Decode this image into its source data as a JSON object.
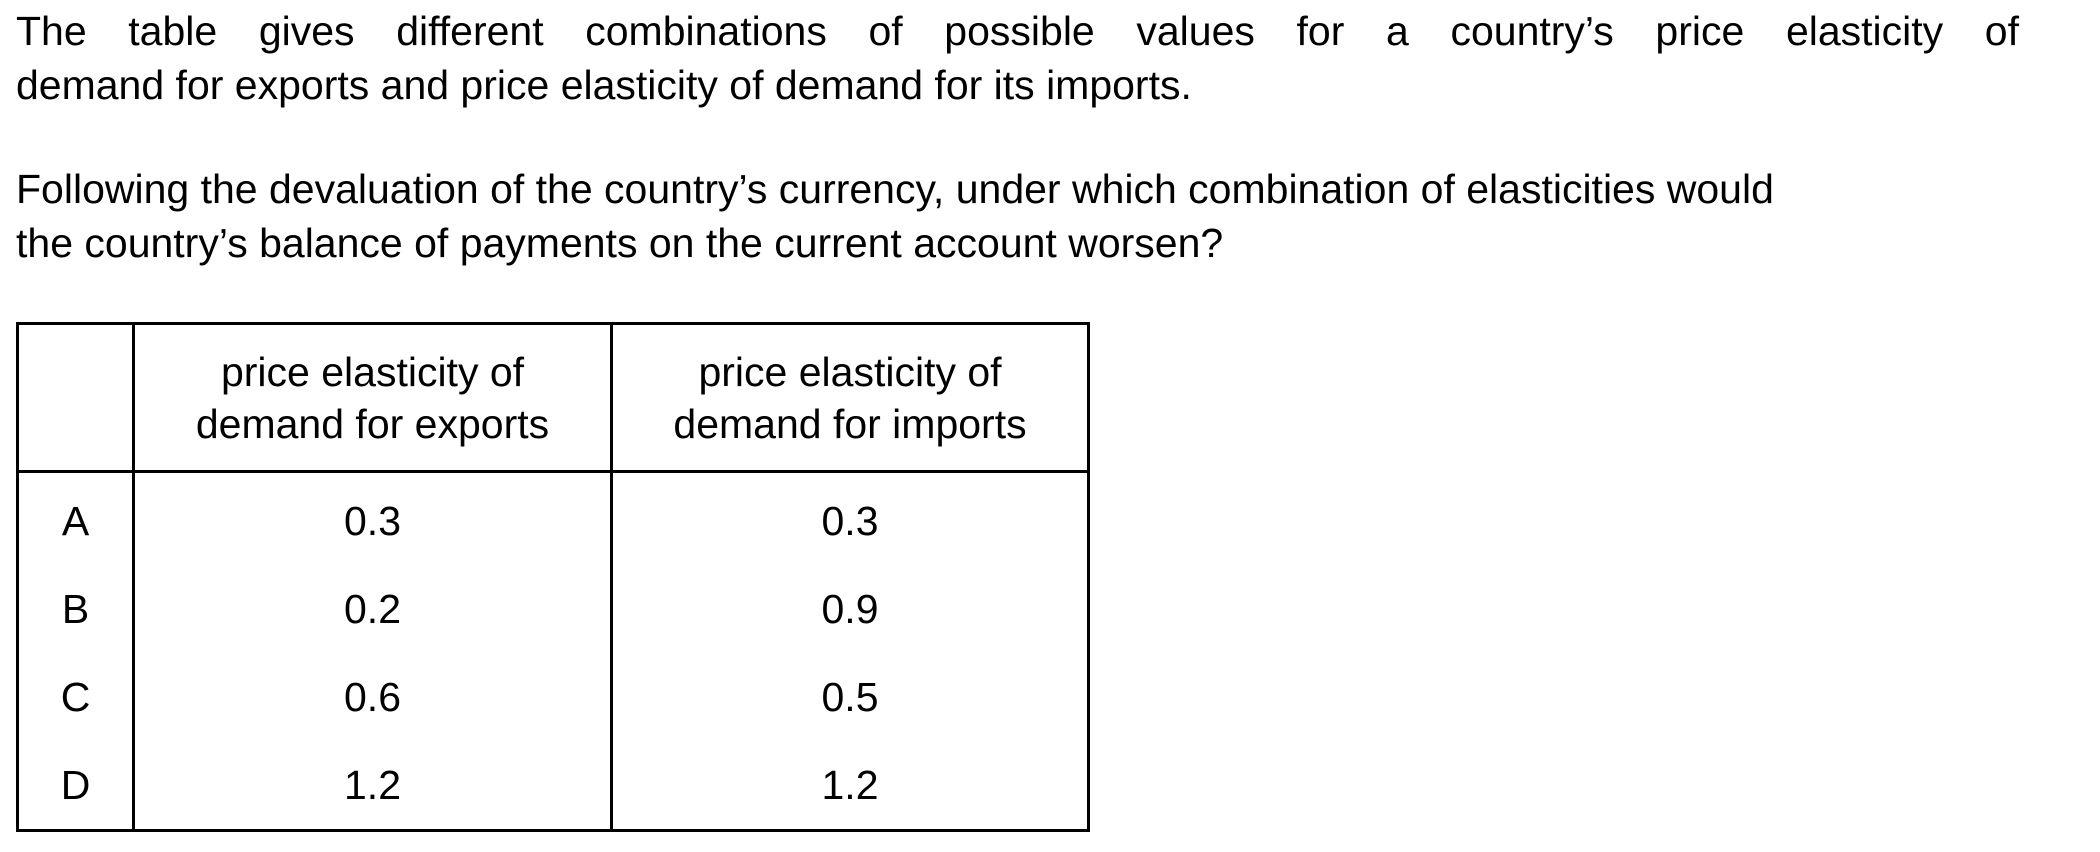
{
  "question": {
    "paragraph1": {
      "line1": "The table gives different combinations of possible values for a country’s price elasticity of",
      "line2": "demand for exports and price elasticity of demand for its imports."
    },
    "paragraph2": {
      "line1": "Following the devaluation of the country’s currency, under which combination of elasticities would",
      "line2": "the country’s balance of payments on the current account worsen?"
    }
  },
  "table": {
    "headers": {
      "letter": "",
      "exports_line1": "price elasticity of",
      "exports_line2": "demand for exports",
      "imports_line1": "price elasticity of",
      "imports_line2": "demand for imports"
    },
    "rows": [
      {
        "letter": "A",
        "exports": "0.3",
        "imports": "0.3"
      },
      {
        "letter": "B",
        "exports": "0.2",
        "imports": "0.9"
      },
      {
        "letter": "C",
        "exports": "0.6",
        "imports": "0.5"
      },
      {
        "letter": "D",
        "exports": "1.2",
        "imports": "1.2"
      }
    ]
  }
}
